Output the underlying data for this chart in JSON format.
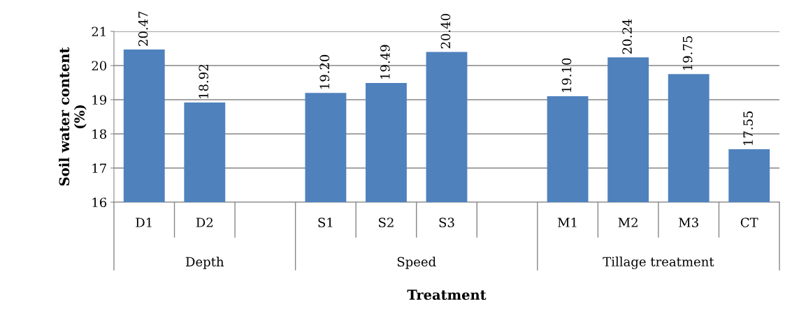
{
  "chart_data": {
    "type": "bar",
    "xlabel": "Treatment",
    "ylabel": "Soil water content\n(%)",
    "categories": [
      "D1",
      "D2",
      null,
      "S1",
      "S2",
      "S3",
      null,
      "M1",
      "M2",
      "M3",
      "CT"
    ],
    "values": [
      20.47,
      18.92,
      null,
      19.2,
      19.49,
      20.4,
      null,
      19.1,
      20.24,
      19.75,
      17.55
    ],
    "value_labels": [
      "20.47",
      "18.92",
      null,
      "19.20",
      "19.49",
      "20.40",
      null,
      "19.10",
      "20.24",
      "19.75",
      "17.55"
    ],
    "color": "#4f81bd",
    "ylim": [
      16,
      21
    ],
    "yticks": [
      16,
      17,
      18,
      19,
      20,
      21
    ],
    "grid": "y",
    "annotations": [
      "Depth",
      "Speed",
      "Tillage treatment"
    ]
  }
}
